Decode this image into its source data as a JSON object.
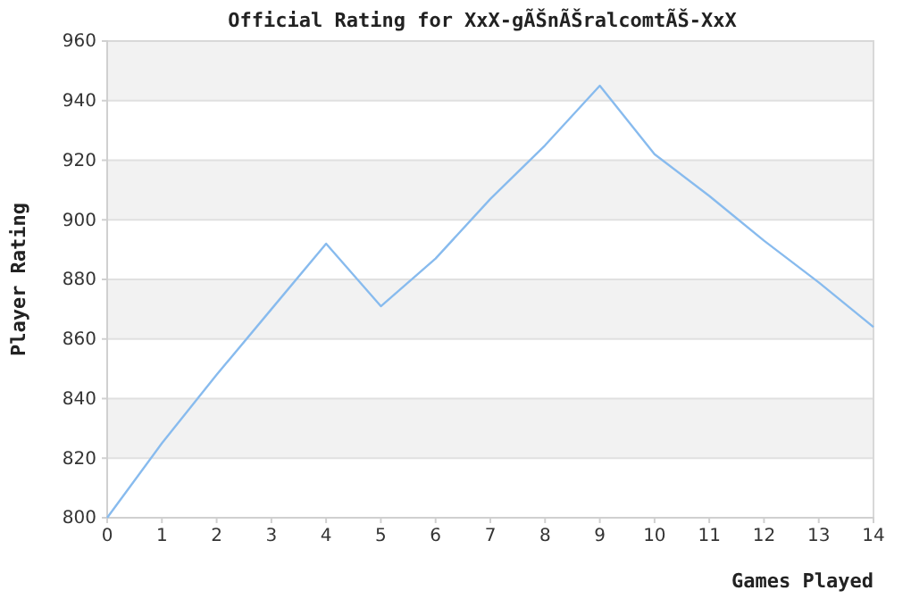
{
  "chart_data": {
    "type": "line",
    "title": "Official Rating for XxX-gÃŠnÃŠralcomtÃŠ-XxX",
    "xlabel": "Games Played",
    "ylabel": "Player Rating",
    "x": [
      0,
      1,
      2,
      3,
      4,
      5,
      6,
      7,
      8,
      9,
      10,
      11,
      12,
      13,
      14
    ],
    "series": [
      {
        "color": "#88bbee",
        "values": [
          800,
          825,
          848,
          870,
          892,
          871,
          887,
          907,
          925,
          945,
          922,
          908,
          893,
          879,
          864
        ]
      }
    ],
    "xlim": [
      0,
      14
    ],
    "xticks": [
      0,
      1,
      2,
      3,
      4,
      5,
      6,
      7,
      8,
      9,
      10,
      11,
      12,
      13,
      14
    ],
    "ylim": [
      800,
      960
    ],
    "yticks": [
      800,
      820,
      840,
      860,
      880,
      900,
      920,
      940,
      960
    ],
    "grid": "y",
    "marker": "none",
    "line_style": "solid"
  }
}
